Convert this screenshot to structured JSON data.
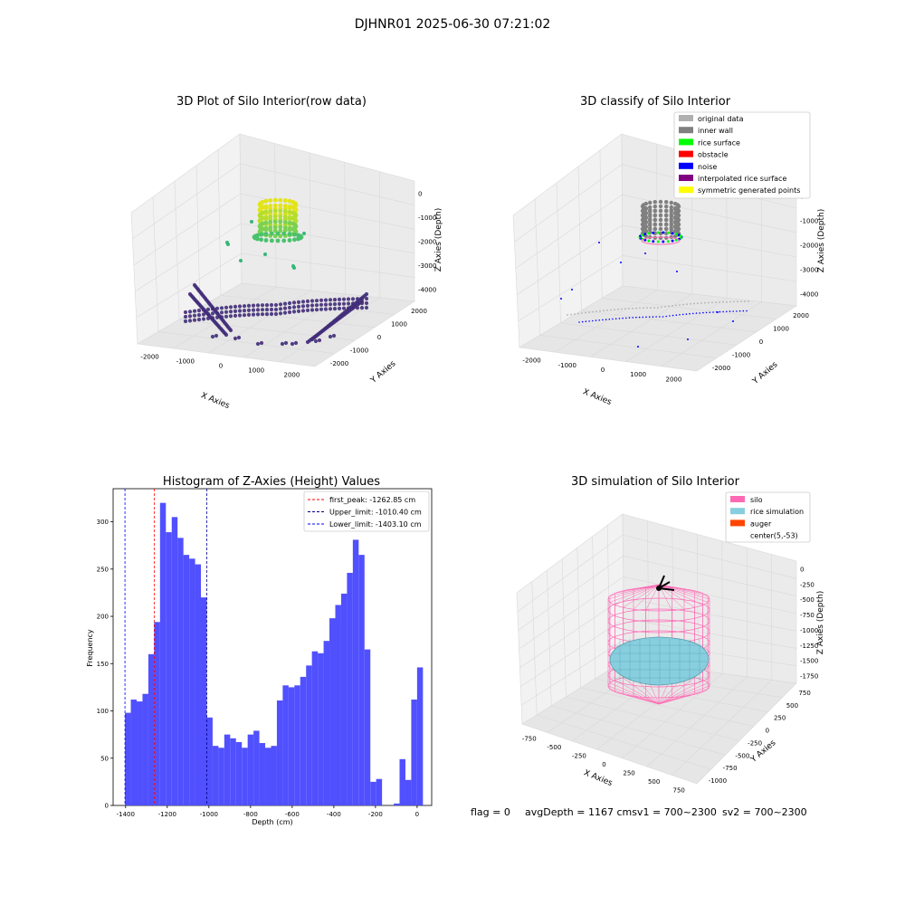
{
  "figure": {
    "suptitle": "DJHNR01 2025-06-30 07:21:02",
    "footer": {
      "flag": "flag = 0",
      "avg_depth": "avgDepth = 1167 cmsv1 = 700~2300",
      "sv2": "sv2 = 700~2300"
    }
  },
  "colors": {
    "pane": "#f2f2f2",
    "grid": "#d9d9d9",
    "bar": "#4d4dff",
    "silo": "#ff69b4",
    "rice": "#87cedf",
    "auger": "#ff4500"
  },
  "chart_data": [
    {
      "type": "scatter",
      "panel": "top-left",
      "title": "3D Plot of Silo Interior(row data)",
      "xlabel": "X Axies",
      "ylabel": "Y Axies",
      "zlabel": "Z Axies (Depth)",
      "x_ticks": [
        "-2000",
        "-1000",
        "0",
        "1000",
        "2000"
      ],
      "y_ticks": [
        "-2000",
        "-1000",
        "0",
        "1000",
        "2000"
      ],
      "z_ticks": [
        "0",
        "-1000",
        "-2000",
        "-3000",
        "-4000"
      ],
      "xlim": [
        -2500,
        2500
      ],
      "ylim": [
        -2500,
        2500
      ],
      "zlim": [
        -4500,
        0
      ],
      "colormap": "viridis",
      "grid": true
    },
    {
      "type": "scatter",
      "panel": "top-right",
      "title": "3D classify of Silo Interior",
      "xlabel": "X Axies",
      "ylabel": "Y Axies",
      "zlabel": "Z Axies (Depth)",
      "x_ticks": [
        "-2000",
        "-1000",
        "0",
        "1000",
        "2000"
      ],
      "y_ticks": [
        "-2000",
        "-1000",
        "0",
        "1000",
        "2000"
      ],
      "z_ticks": [
        "0",
        "-1000",
        "-2000",
        "-3000",
        "-4000"
      ],
      "legend_position": "top-right",
      "legend": [
        {
          "label": "original data",
          "color": "#b0b0b0"
        },
        {
          "label": "inner wall",
          "color": "#808080"
        },
        {
          "label": "rice surface",
          "color": "#00ff00"
        },
        {
          "label": "obstacle",
          "color": "#ff0000"
        },
        {
          "label": "noise",
          "color": "#0000ff"
        },
        {
          "label": "interpolated rice surface",
          "color": "#800080"
        },
        {
          "label": "symmetric generated points",
          "color": "#ffff00"
        }
      ],
      "grid": true
    },
    {
      "type": "bar",
      "panel": "bottom-left",
      "title": "Histogram of Z-Axies (Height) Values",
      "xlabel": "Depth (cm)",
      "ylabel": "Frequency",
      "xlim": [
        -1460,
        70
      ],
      "ylim": [
        0,
        335
      ],
      "x_ticks": [
        -1400,
        -1200,
        -1000,
        -800,
        -600,
        -400,
        -200,
        0
      ],
      "y_ticks": [
        0,
        50,
        100,
        150,
        200,
        250,
        300
      ],
      "bin_width": 28.06,
      "bin_start": -1403.1,
      "values": [
        98,
        112,
        110,
        118,
        160,
        194,
        320,
        289,
        305,
        283,
        265,
        261,
        255,
        220,
        93,
        63,
        61,
        75,
        71,
        67,
        61,
        75,
        79,
        66,
        61,
        63,
        111,
        127,
        125,
        127,
        136,
        148,
        163,
        161,
        174,
        198,
        212,
        224,
        246,
        281,
        265,
        165,
        25,
        28,
        0,
        0,
        2,
        49,
        27,
        112,
        146
      ],
      "vlines": [
        {
          "label": "first_peak: -1262.85 cm",
          "x": -1262.85,
          "color": "#ff0000"
        },
        {
          "label": "Upper_limit: -1010.40 cm",
          "x": -1010.4,
          "color": "#00008b"
        },
        {
          "label": "Lower_limit: -1403.10 cm",
          "x": -1403.1,
          "color": "#0000ff"
        }
      ],
      "legend_position": "top-right"
    },
    {
      "type": "scatter",
      "panel": "bottom-right",
      "title": "3D simulation of Silo Interior",
      "xlabel": "X Axies",
      "ylabel": "Y Axies",
      "zlabel": "Z Axies (Depth)",
      "x_ticks": [
        "-750",
        "-500",
        "-250",
        "0",
        "250",
        "500",
        "750"
      ],
      "y_ticks": [
        "-1000",
        "-750",
        "-500",
        "-250",
        "0",
        "250",
        "500",
        "750"
      ],
      "z_ticks": [
        "0",
        "-250",
        "-500",
        "-750",
        "-1000",
        "-1250",
        "-1500",
        "-1750"
      ],
      "legend_position": "top-right",
      "legend": [
        {
          "label": "silo",
          "color": "#ff69b4"
        },
        {
          "label": "rice simulation",
          "color": "#87cedf"
        },
        {
          "label": "auger",
          "color": "#ff4500"
        },
        {
          "label": "center(5,-53)",
          "color": ""
        }
      ],
      "grid": true
    }
  ]
}
